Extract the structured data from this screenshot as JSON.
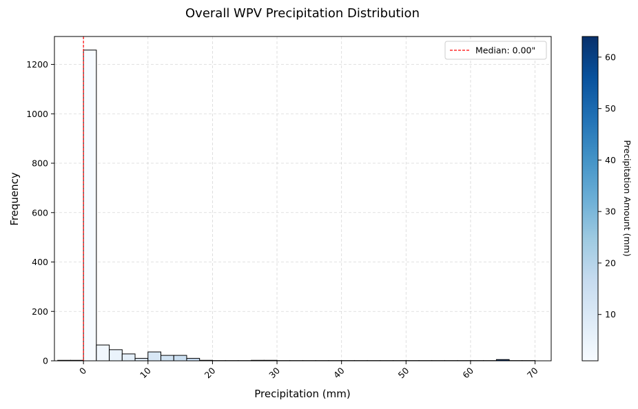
{
  "chart_data": {
    "type": "bar",
    "title": "Overall WPV Precipitation Distribution",
    "xlabel": "Precipitation (mm)",
    "ylabel": "Frequency",
    "xlim": [
      -4.5,
      72.5
    ],
    "ylim": [
      0,
      1313
    ],
    "xticks": [
      0,
      10,
      20,
      30,
      40,
      50,
      60,
      70
    ],
    "yticks": [
      0,
      200,
      400,
      600,
      800,
      1000,
      1200
    ],
    "grid": true,
    "bins": {
      "start": -4.0,
      "width": 2.0,
      "counts": [
        2,
        2,
        1258,
        64,
        45,
        28,
        10,
        36,
        22,
        22,
        10,
        2,
        1,
        1,
        1,
        2,
        2,
        1,
        1,
        1,
        1,
        1,
        1,
        1,
        1,
        1,
        1,
        1,
        1,
        1,
        1,
        1,
        1,
        1,
        5,
        1,
        1
      ]
    },
    "median_line": {
      "x": 0.0,
      "label": "Median: 0.00\"",
      "color": "#ff0000"
    },
    "legend": {
      "position": "top-right"
    },
    "colorbar": {
      "label": "Precipitation Amount (mm)",
      "range": [
        1,
        64
      ],
      "ticks": [
        10,
        20,
        30,
        40,
        50,
        60
      ],
      "colormap": "Blues",
      "color_low": "#f7fbff",
      "color_high": "#08306b"
    }
  }
}
